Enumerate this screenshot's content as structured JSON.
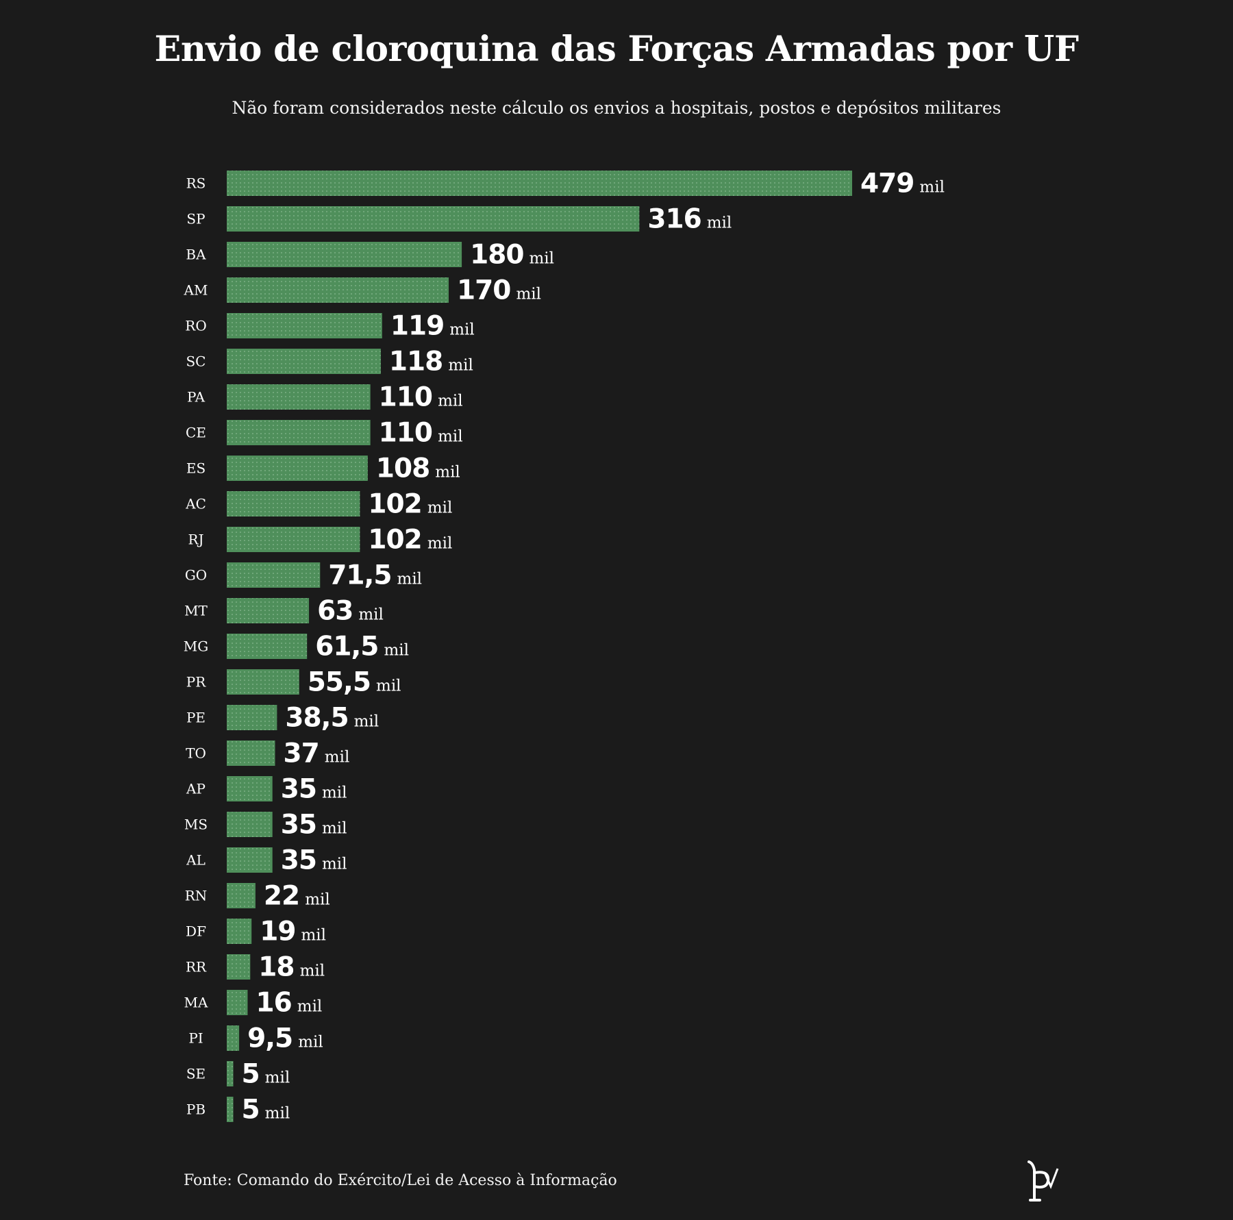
{
  "title": "Envio de cloroquina das Forças Armadas por UF",
  "subtitle": "Não foram considerados neste cálculo os envios a hospitais, postos e depósitos militares",
  "source": "Fonte: Comando do Exército/Lei de Acesso à Informação",
  "logo_icon": "pv-logo-icon",
  "colors": {
    "background": "#1b1b1b",
    "bar": "#4f8f5b",
    "text": "#ffffff"
  },
  "chart_data": {
    "type": "bar",
    "orientation": "horizontal",
    "title": "Envio de cloroquina das Forças Armadas por UF",
    "subtitle": "Não foram considerados neste cálculo os envios a hospitais, postos e depósitos militares",
    "xlabel": "",
    "ylabel": "",
    "unit": "mil",
    "xlim": [
      0,
      479
    ],
    "grid": false,
    "legend": "none",
    "categories": [
      "RS",
      "SP",
      "BA",
      "AM",
      "RO",
      "SC",
      "PA",
      "CE",
      "ES",
      "AC",
      "RJ",
      "GO",
      "MT",
      "MG",
      "PR",
      "PE",
      "TO",
      "AP",
      "MS",
      "AL",
      "RN",
      "DF",
      "RR",
      "MA",
      "PI",
      "SE",
      "PB"
    ],
    "values": [
      479,
      316,
      180,
      170,
      119,
      118,
      110,
      110,
      108,
      102,
      102,
      71.5,
      63,
      61.5,
      55.5,
      38.5,
      37,
      35,
      35,
      35,
      22,
      19,
      18,
      16,
      9.5,
      5,
      5
    ],
    "labels": [
      "479",
      "316",
      "180",
      "170",
      "119",
      "118",
      "110",
      "110",
      "108",
      "102",
      "102",
      "71,5",
      "63",
      "61,5",
      "55,5",
      "38,5",
      "37",
      "35",
      "35",
      "35",
      "22",
      "19",
      "18",
      "16",
      "9,5",
      "5",
      "5"
    ]
  }
}
